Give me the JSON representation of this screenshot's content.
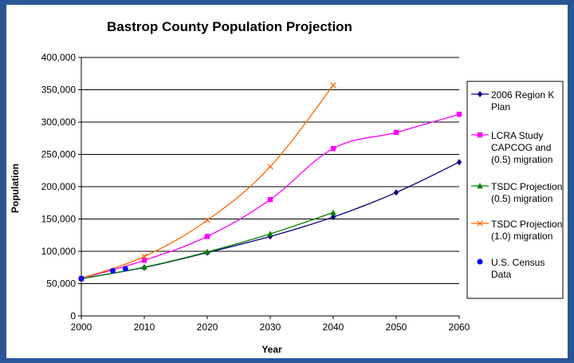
{
  "chart_data": {
    "type": "line",
    "title": "Bastrop County Population Projection",
    "xlabel": "Year",
    "ylabel": "Population",
    "xlim": [
      2000,
      2060
    ],
    "ylim": [
      0,
      400000
    ],
    "x_ticks": [
      "2000",
      "2010",
      "2020",
      "2030",
      "2040",
      "2050",
      "2060"
    ],
    "y_ticks": [
      "0",
      "50,000",
      "100,000",
      "150,000",
      "200,000",
      "250,000",
      "300,000",
      "350,000",
      "400,000"
    ],
    "grid": true,
    "legend_position": "right",
    "series": [
      {
        "name": "2006 Region K Plan",
        "color": "#000080",
        "marker": "diamond",
        "x": [
          2000,
          2010,
          2020,
          2030,
          2040,
          2050,
          2060
        ],
        "y": [
          57700,
          75000,
          98000,
          123000,
          153000,
          191000,
          238000
        ]
      },
      {
        "name": "LCRA Study CAPCOG and (0.5) migration",
        "color": "#ff00ff",
        "marker": "square",
        "x": [
          2000,
          2010,
          2020,
          2030,
          2040,
          2050,
          2060
        ],
        "y": [
          58000,
          86000,
          123000,
          180000,
          259000,
          284000,
          312000
        ]
      },
      {
        "name": "TSDC Projection (0.5) migration",
        "color": "#008000",
        "marker": "triangle",
        "x": [
          2000,
          2010,
          2020,
          2030,
          2040
        ],
        "y": [
          57700,
          75500,
          99000,
          127000,
          160000
        ]
      },
      {
        "name": "TSDC Projection (1.0) migration",
        "color": "#ff6600",
        "marker": "x",
        "x": [
          2000,
          2010,
          2020,
          2030,
          2040
        ],
        "y": [
          58000,
          92000,
          148000,
          231000,
          357000
        ]
      },
      {
        "name": "U.S. Census Data",
        "color": "#0000ff",
        "marker": "circle",
        "line": false,
        "x": [
          2000,
          2005,
          2007
        ],
        "y": [
          57700,
          70000,
          73000
        ]
      }
    ],
    "legend_lines": [
      [
        "2006 Region K",
        "Plan"
      ],
      [
        "LCRA Study",
        "CAPCOG and",
        "(0.5) migration"
      ],
      [
        "TSDC Projection",
        "(0.5) migration"
      ],
      [
        "TSDC Projection",
        "(1.0) migration"
      ],
      [
        "U.S. Census",
        "Data"
      ]
    ]
  }
}
